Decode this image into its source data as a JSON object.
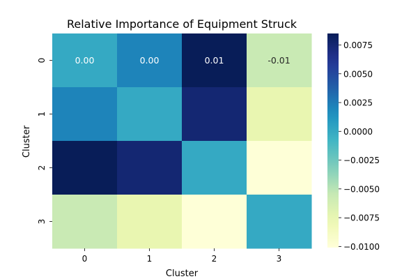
{
  "chart_data": {
    "type": "heatmap",
    "title": "Relative Importance of Equipment Struck",
    "xlabel": "Cluster",
    "ylabel": "Cluster",
    "x_categories": [
      "0",
      "1",
      "2",
      "3"
    ],
    "y_categories": [
      "0",
      "1",
      "2",
      "3"
    ],
    "values": [
      [
        0.0,
        0.0021,
        0.0085,
        -0.0056
      ],
      [
        0.0021,
        0.0,
        0.0075,
        -0.0075
      ],
      [
        0.0085,
        0.0075,
        0.0,
        -0.01
      ],
      [
        -0.0056,
        -0.0075,
        -0.01,
        0.0
      ]
    ],
    "annotations": [
      [
        "0.00",
        "0.00",
        "0.01",
        "-0.01"
      ],
      [
        "",
        "",
        "",
        ""
      ],
      [
        "",
        "",
        "",
        ""
      ],
      [
        "",
        "",
        "",
        ""
      ]
    ],
    "colorbar": {
      "cmap": "YlGnBu",
      "vmin": -0.0101,
      "vmax": 0.0085,
      "ticks": [
        0.0075,
        0.005,
        0.0025,
        0.0,
        -0.0025,
        -0.005,
        -0.0075,
        -0.01
      ],
      "tick_labels": [
        "0.0075",
        "0.0050",
        "0.0025",
        "0.0000",
        "−0.0025",
        "−0.0050",
        "−0.0075",
        "−0.0100"
      ]
    }
  }
}
